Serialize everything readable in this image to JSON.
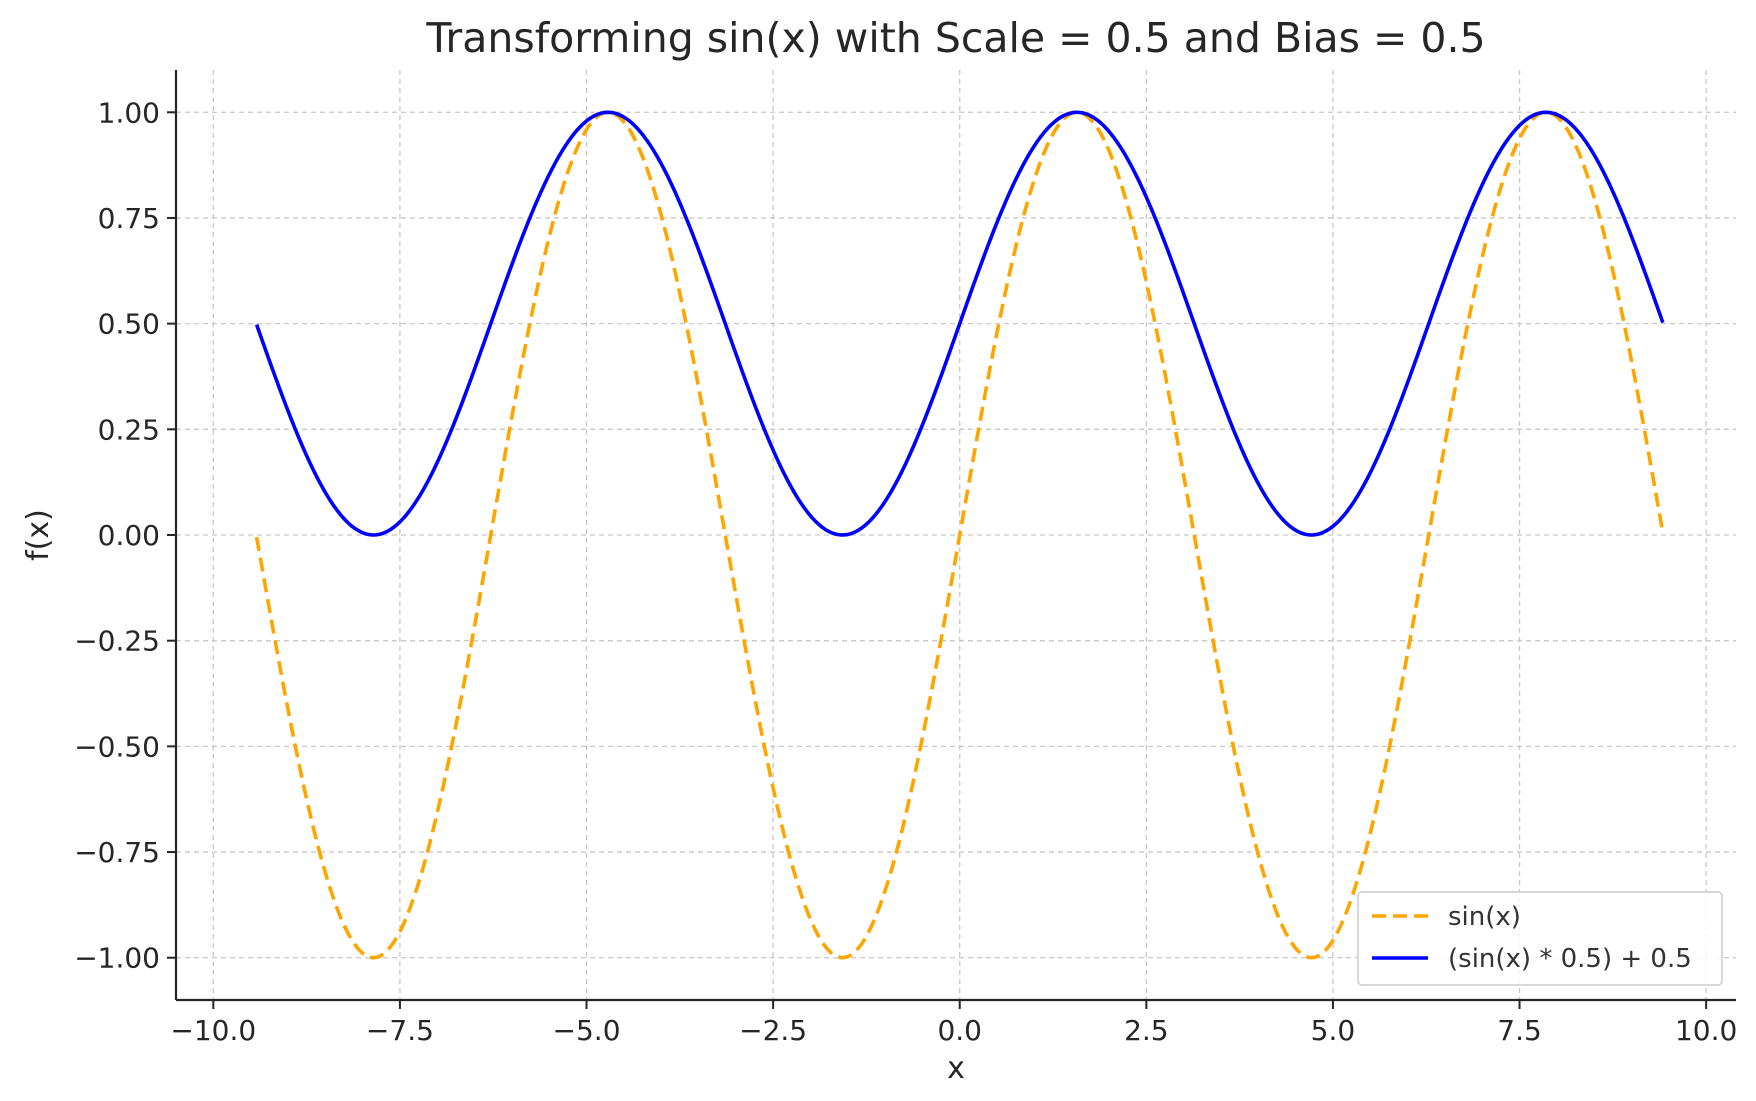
{
  "chart_data": {
    "type": "line",
    "title": "Transforming sin(x) with Scale = 0.5 and Bias = 0.5",
    "xlabel": "x",
    "ylabel": "f(x)",
    "xlim": [
      -10.5,
      10.4
    ],
    "ylim": [
      -1.1,
      1.1
    ],
    "x_range": [
      -9.42,
      9.42
    ],
    "grid": true,
    "legend_position": "lower-right",
    "x_ticks": [
      -10.0,
      -7.5,
      -5.0,
      -2.5,
      0.0,
      2.5,
      5.0,
      7.5,
      10.0
    ],
    "x_tick_labels": [
      "−10.0",
      "−7.5",
      "−5.0",
      "−2.5",
      "0.0",
      "2.5",
      "5.0",
      "7.5",
      "10.0"
    ],
    "y_ticks": [
      1.0,
      0.75,
      0.5,
      0.25,
      0.0,
      -0.25,
      -0.5,
      -0.75,
      -1.0
    ],
    "y_tick_labels": [
      "1.00",
      "0.75",
      "0.50",
      "0.25",
      "0.00",
      "−0.25",
      "−0.50",
      "−0.75",
      "−1.00"
    ],
    "series": [
      {
        "name": "sin(x)",
        "formula": "sin(x)",
        "scale": 1,
        "bias": 0,
        "color": "#ffa500",
        "style": "dashed"
      },
      {
        "name": "(sin(x) * 0.5) + 0.5",
        "formula": "sin(x) * 0.5 + 0.5",
        "scale": 0.5,
        "bias": 0.5,
        "color": "#0000ff",
        "style": "solid"
      }
    ]
  }
}
